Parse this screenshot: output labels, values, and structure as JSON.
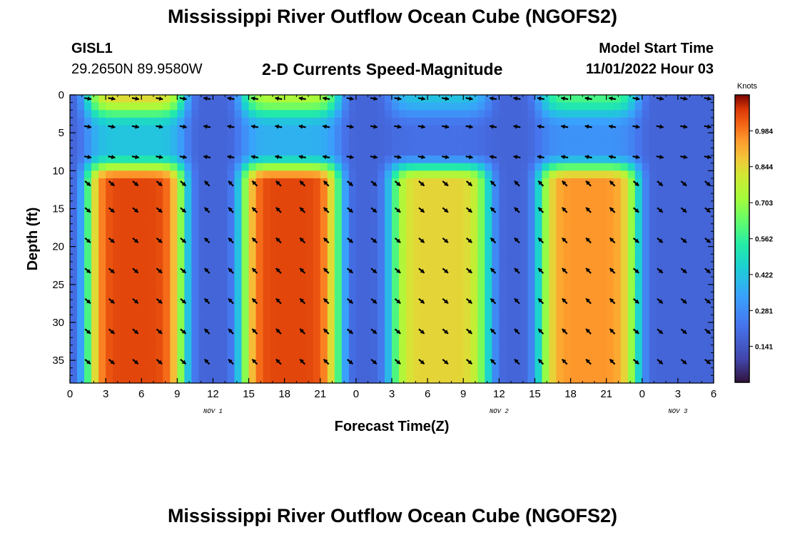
{
  "header": {
    "title": "Mississippi River Outflow Ocean Cube (NGOFS2)",
    "station": "GISL1",
    "coords": "29.2650N  89.9580W",
    "subtitle": "2-D Currents Speed-Magnitude",
    "model_start_label": "Model Start Time",
    "model_start_value": "11/01/2022 Hour 03"
  },
  "footer": {
    "title": "Mississippi River Outflow Ocean Cube (NGOFS2)"
  },
  "chart_data": {
    "type": "heatmap",
    "title": "2-D Currents Speed-Magnitude",
    "xlabel": "Forecast Time(Z)",
    "ylabel": "Depth (ft)",
    "x_range_hours": [
      0,
      54
    ],
    "y_range_ft": [
      0,
      38
    ],
    "x_tick_labels": [
      "0",
      "3",
      "6",
      "9",
      "12",
      "15",
      "18",
      "21",
      "0",
      "3",
      "6",
      "9",
      "12",
      "15",
      "18",
      "21",
      "0",
      "3",
      "6"
    ],
    "y_tick_labels": [
      "0",
      "5",
      "10",
      "15",
      "20",
      "25",
      "30",
      "35"
    ],
    "date_labels": [
      {
        "text": "NOV 1",
        "hour": 12
      },
      {
        "text": "NOV 2",
        "hour": 36
      },
      {
        "text": "NOV 3",
        "hour": 51
      }
    ],
    "colorbar": {
      "units": "Knots",
      "min": 0.0,
      "max": 1.125,
      "tick_labels": [
        "0.984",
        "0.844",
        "0.703",
        "0.562",
        "0.422",
        "0.281",
        "0.141"
      ],
      "tick_values": [
        0.984,
        0.844,
        0.703,
        0.562,
        0.422,
        0.281,
        0.141
      ]
    },
    "speed_peaks_knots": [
      {
        "center_hour": 5.5,
        "lower_layer": 1.05,
        "surface_layer": 0.85
      },
      {
        "center_hour": 18.5,
        "lower_layer": 1.05,
        "surface_layer": 0.75
      },
      {
        "center_hour": 31.0,
        "lower_layer": 0.85,
        "surface_layer": 0.42
      },
      {
        "center_hour": 43.5,
        "lower_layer": 0.95,
        "surface_layer": 0.6
      }
    ]
  }
}
